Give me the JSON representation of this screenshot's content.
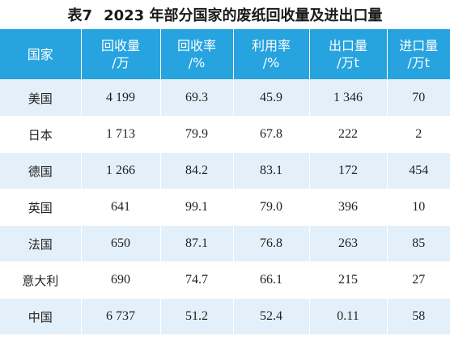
{
  "title": {
    "label": "表7",
    "text": "2023 年部分国家的废纸回收量及进出口量"
  },
  "table": {
    "headers": [
      {
        "line1": "国家",
        "line2": ""
      },
      {
        "line1": "回收量",
        "line2": "/万"
      },
      {
        "line1": "回收率",
        "line2": "/%"
      },
      {
        "line1": "利用率",
        "line2": "/%"
      },
      {
        "line1": "出口量",
        "line2": "/万t"
      },
      {
        "line1": "进口量",
        "line2": "/万t"
      }
    ],
    "rows": [
      [
        "美国",
        "4 199",
        "69.3",
        "45.9",
        "1 346",
        "70"
      ],
      [
        "日本",
        "1 713",
        "79.9",
        "67.8",
        "222",
        "2"
      ],
      [
        "德国",
        "1 266",
        "84.2",
        "83.1",
        "172",
        "454"
      ],
      [
        "英国",
        "641",
        "99.1",
        "79.0",
        "396",
        "10"
      ],
      [
        "法国",
        "650",
        "87.1",
        "76.8",
        "263",
        "85"
      ],
      [
        "意大利",
        "690",
        "74.7",
        "66.1",
        "215",
        "27"
      ],
      [
        "中国",
        "6 737",
        "51.2",
        "52.4",
        "0.11",
        "58"
      ]
    ]
  },
  "colors": {
    "header_bg": "#27a3df",
    "stripe_bg": "#e4f0f9",
    "header_text": "#ffffff"
  }
}
